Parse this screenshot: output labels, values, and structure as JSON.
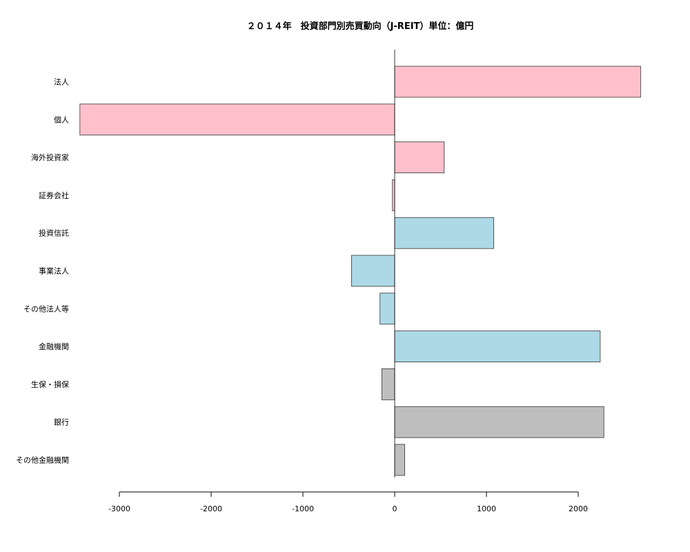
{
  "chart_data": {
    "type": "bar",
    "orientation": "horizontal",
    "title": "２０１４年　投資部門別売買動向（J-REIT）単位：億円",
    "xlabel": "",
    "ylabel": "",
    "xlim": [
      -3000,
      2700
    ],
    "xticks": [
      -3000,
      -2000,
      -1000,
      0,
      1000,
      2000
    ],
    "grid": false,
    "categories": [
      "法人",
      "個人",
      "海外投資家",
      "証券会社",
      "投資信託",
      "事業法人",
      "その他法人等",
      "金融機関",
      "生保・損保",
      "銀行",
      "その他金融機関"
    ],
    "values": [
      2680,
      -3430,
      540,
      -25,
      1080,
      -470,
      -160,
      2240,
      -140,
      2280,
      110
    ],
    "bar_colors": [
      "#ffc0cb",
      "#ffc0cb",
      "#ffc0cb",
      "#ffc0cb",
      "#add8e6",
      "#add8e6",
      "#add8e6",
      "#add8e6",
      "#bebebe",
      "#bebebe",
      "#bebebe"
    ]
  }
}
